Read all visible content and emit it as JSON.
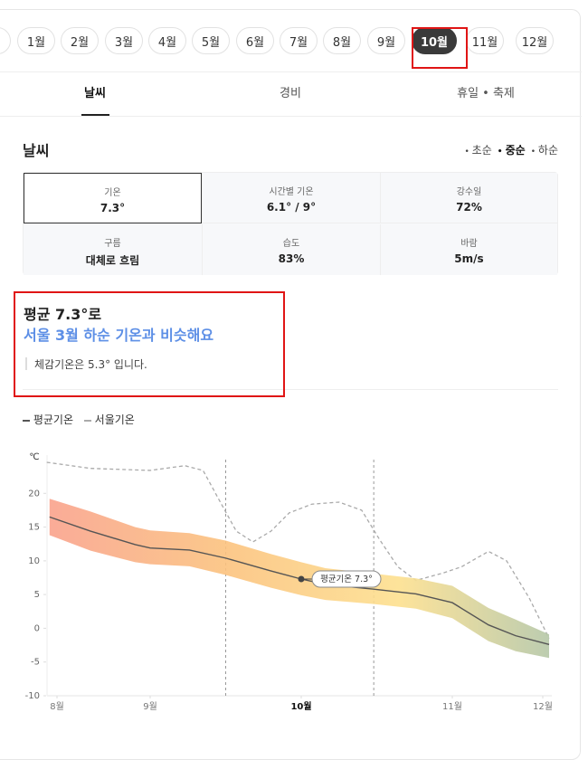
{
  "month_tabs": {
    "items": [
      "1월",
      "2월",
      "3월",
      "4월",
      "5월",
      "6월",
      "7월",
      "8월",
      "9월",
      "10월",
      "11월",
      "12월"
    ],
    "selected": "10월"
  },
  "tabs": {
    "items": [
      "날씨",
      "경비",
      "휴일 • 축제"
    ],
    "selected": "날씨"
  },
  "weather": {
    "title": "날씨",
    "periods": [
      "초순",
      "중순",
      "하순"
    ],
    "selected_period": "중순",
    "stats": [
      {
        "label": "기온",
        "value": "7.3°"
      },
      {
        "label": "시간별 기온",
        "value": "6.1° / 9°"
      },
      {
        "label": "강수일",
        "value": "72%"
      },
      {
        "label": "구름",
        "value": "대체로 흐림"
      },
      {
        "label": "습도",
        "value": "83%"
      },
      {
        "label": "바람",
        "value": "5m/s"
      }
    ]
  },
  "summary": {
    "headline": "평균 7.3°로",
    "comparison": "서울 3월 하순 기온과 비슷해요",
    "note": "체감기온은 5.3° 입니다."
  },
  "chart_data": {
    "type": "line",
    "y_label": "℃",
    "ylim": [
      -10,
      25
    ],
    "yticks": [
      -10,
      -5,
      0,
      5,
      10,
      15,
      20
    ],
    "grid": false,
    "xlim": [
      7.89,
      12.07
    ],
    "xticks": [
      {
        "value": 8,
        "label": "8월"
      },
      {
        "value": 9,
        "label": "9월"
      },
      {
        "value": 10,
        "label": "10월"
      },
      {
        "value": 11,
        "label": "11월"
      },
      {
        "value": 12,
        "label": "12월"
      }
    ],
    "emphasized_xtick": "10월",
    "highlight_range": [
      9.5,
      10.48
    ],
    "series": [
      {
        "name": "평균기온",
        "color": "#555555",
        "x": [
          7.92,
          8.36,
          8.84,
          9.0,
          9.26,
          9.5,
          9.8,
          10.0,
          10.16,
          10.48,
          10.76,
          11.0,
          11.4,
          11.7,
          12.07
        ],
        "values": [
          16.5,
          14.4,
          12.4,
          11.9,
          11.6,
          10.4,
          8.5,
          7.3,
          6.5,
          5.8,
          5.1,
          3.8,
          0.5,
          -1.1,
          -2.4
        ],
        "range_high": [
          19.2,
          17.3,
          15.0,
          14.5,
          14.1,
          13.0,
          11.0,
          9.8,
          8.9,
          8.1,
          7.4,
          6.3,
          3.0,
          1.3,
          -0.9
        ],
        "range_low": [
          13.8,
          11.5,
          9.8,
          9.5,
          9.2,
          7.9,
          6.0,
          4.9,
          4.2,
          3.6,
          2.9,
          1.5,
          -1.9,
          -3.4,
          -4.4
        ]
      },
      {
        "name": "서울기온",
        "color": "#aaaaaa",
        "dashed": true,
        "x": [
          7.89,
          8.36,
          9.0,
          9.23,
          9.35,
          9.44,
          9.57,
          9.68,
          9.8,
          9.92,
          10.07,
          10.25,
          10.4,
          10.52,
          10.64,
          10.76,
          10.94,
          11.1,
          11.4,
          11.6,
          11.85,
          12.07
        ],
        "values": [
          24.6,
          23.7,
          23.4,
          24.1,
          23.4,
          19.7,
          14.4,
          12.8,
          14.4,
          17.1,
          18.4,
          18.7,
          17.5,
          13.1,
          9.1,
          7.1,
          8.2,
          9.1,
          11.4,
          10.0,
          4.5,
          -1.5
        ]
      }
    ],
    "annotation": {
      "text": "평균기온 7.3°",
      "x": 10.0,
      "y": 7.3
    }
  }
}
